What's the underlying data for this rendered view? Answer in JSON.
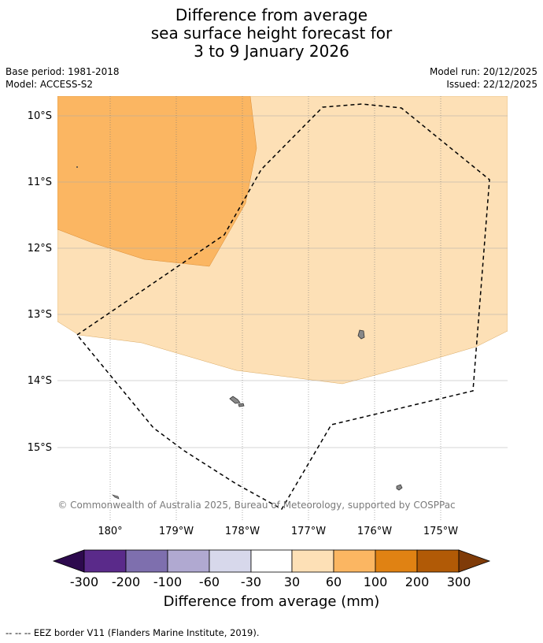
{
  "title": {
    "line1": "Difference from average",
    "line2": "sea surface height forecast for",
    "line3": "3 to 9 January 2026"
  },
  "meta": {
    "base_period": "Base period: 1981-2018",
    "model": "Model: ACCESS-S2",
    "model_run": "Model run: 20/12/2025",
    "issued": "Issued: 22/12/2025"
  },
  "map": {
    "lat_labels": [
      "10°S",
      "11°S",
      "12°S",
      "13°S",
      "14°S",
      "15°S"
    ],
    "lon_labels": [
      "180°",
      "179°W",
      "178°W",
      "177°W",
      "176°W",
      "175°W"
    ],
    "copyright": "© Commonwealth of Australia 2025, Bureau of Meteorology, supported by COSPPac",
    "colors": {
      "cat_30_60": "#fde0b6",
      "cat_60_100": "#fbb662",
      "land": "#888888",
      "ocean_neutral": "#ffffff"
    }
  },
  "colorbar": {
    "title": "Difference from average (mm)",
    "labels": [
      "-300",
      "-200",
      "-100",
      "-60",
      "-30",
      "30",
      "60",
      "100",
      "200",
      "300"
    ],
    "colors": [
      "#2d0a4e",
      "#5a2a8a",
      "#7e6fae",
      "#b0a9d1",
      "#d7d8eb",
      "#ffffff",
      "#fde0b6",
      "#fbb662",
      "#e08213",
      "#b15a06",
      "#7f3b08"
    ]
  },
  "footer": "--  --  -- EEZ border V11 (Flanders Marine Institute, 2019)."
}
